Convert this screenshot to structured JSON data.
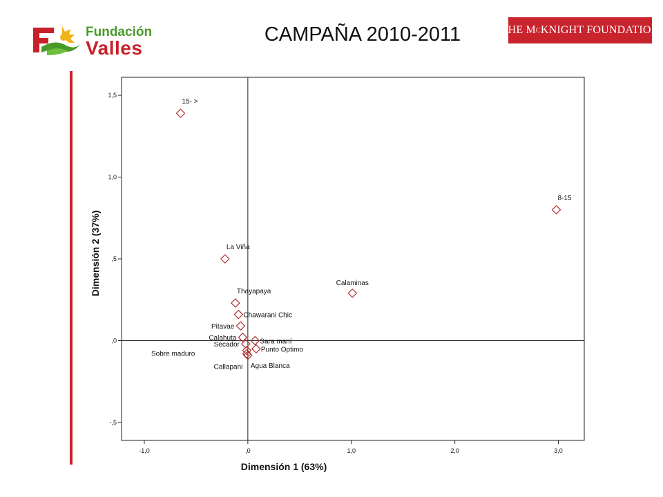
{
  "header": {
    "title": "CAMPAÑA 2010-2011",
    "left_logo": {
      "line1": "Fundación",
      "line2": "Valles",
      "icon": "fundacion-valles-logo-icon"
    },
    "right_logo": {
      "text_main": "THE M",
      "text_sup": "C",
      "text_rest": "KNIGHT FOUNDATION"
    }
  },
  "colors": {
    "accent_red": "#c9232d",
    "marker": "#b03030",
    "brand_green": "#4a9a2a"
  },
  "chart_data": {
    "type": "scatter",
    "title": "",
    "xlabel": "Dimensión 1 (63%)",
    "ylabel": "Dimensión 2 (37%)",
    "xlim": [
      -1.22,
      3.25
    ],
    "ylim": [
      -0.61,
      1.61
    ],
    "x_ticks": [
      -1.0,
      0.0,
      1.0,
      2.0,
      3.0
    ],
    "x_tick_labels": [
      "-1,0",
      ",0",
      "1,0",
      "2,0",
      "3,0"
    ],
    "y_ticks": [
      -0.5,
      0.0,
      0.5,
      1.0,
      1.5
    ],
    "y_tick_labels": [
      "-,5",
      ",0",
      ",5",
      "1,0",
      "1,5"
    ],
    "reference_lines": {
      "x": 0.0,
      "y": 0.0
    },
    "marker": "diamond-open",
    "points": [
      {
        "label": "15- >",
        "x": -0.65,
        "y": 1.39,
        "label_pos": "above-right"
      },
      {
        "label": "8-15",
        "x": 2.98,
        "y": 0.8,
        "label_pos": "above-right"
      },
      {
        "label": "La Viña",
        "x": -0.22,
        "y": 0.5,
        "label_pos": "above-right"
      },
      {
        "label": "Calaminas",
        "x": 1.01,
        "y": 0.29,
        "label_pos": "above"
      },
      {
        "label": "Thayapaya",
        "x": -0.12,
        "y": 0.23,
        "label_pos": "above-right"
      },
      {
        "label": "Chawarani Chic",
        "x": -0.09,
        "y": 0.16,
        "label_pos": "right"
      },
      {
        "label": "Pitavae",
        "x": -0.07,
        "y": 0.09,
        "label_pos": "left"
      },
      {
        "label": "Calahuta",
        "x": -0.05,
        "y": 0.02,
        "label_pos": "left"
      },
      {
        "label": "Sara maní",
        "x": 0.07,
        "y": 0.0,
        "label_pos": "right"
      },
      {
        "label": "Secador",
        "x": -0.02,
        "y": -0.02,
        "label_pos": "left"
      },
      {
        "label": "Punto Optimo",
        "x": 0.08,
        "y": -0.05,
        "label_pos": "right"
      },
      {
        "label": "Sobre maduro",
        "x": -0.01,
        "y": -0.06,
        "label_pos": "far-left"
      },
      {
        "label": "Agua Blanca",
        "x": 0.0,
        "y": -0.09,
        "label_pos": "below-right"
      },
      {
        "label": "Callapani",
        "x": -0.01,
        "y": -0.08,
        "label_pos": "below-left"
      }
    ],
    "grid": false,
    "legend": "none"
  }
}
